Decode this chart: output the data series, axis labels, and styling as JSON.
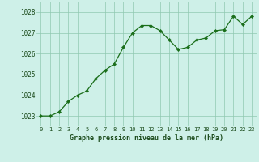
{
  "x": [
    0,
    1,
    2,
    3,
    4,
    5,
    6,
    7,
    8,
    9,
    10,
    11,
    12,
    13,
    14,
    15,
    16,
    17,
    18,
    19,
    20,
    21,
    22,
    23
  ],
  "y": [
    1023.0,
    1023.0,
    1023.2,
    1023.7,
    1024.0,
    1024.2,
    1024.8,
    1025.2,
    1025.5,
    1026.3,
    1027.0,
    1027.35,
    1027.35,
    1027.1,
    1026.65,
    1026.2,
    1026.3,
    1026.65,
    1026.75,
    1027.1,
    1027.15,
    1027.8,
    1027.4,
    1027.8
  ],
  "line_color": "#1a6e1a",
  "marker_color": "#1a6e1a",
  "bg_color": "#cef0e8",
  "grid_color": "#90c8b0",
  "xlabel": "Graphe pression niveau de la mer (hPa)",
  "xlabel_color": "#1a4a1a",
  "tick_label_color": "#1a4a1a",
  "ylim": [
    1022.5,
    1028.5
  ],
  "yticks": [
    1023,
    1024,
    1025,
    1026,
    1027,
    1028
  ],
  "xticks": [
    0,
    1,
    2,
    3,
    4,
    5,
    6,
    7,
    8,
    9,
    10,
    11,
    12,
    13,
    14,
    15,
    16,
    17,
    18,
    19,
    20,
    21,
    22,
    23
  ],
  "xlim": [
    -0.5,
    23.5
  ]
}
